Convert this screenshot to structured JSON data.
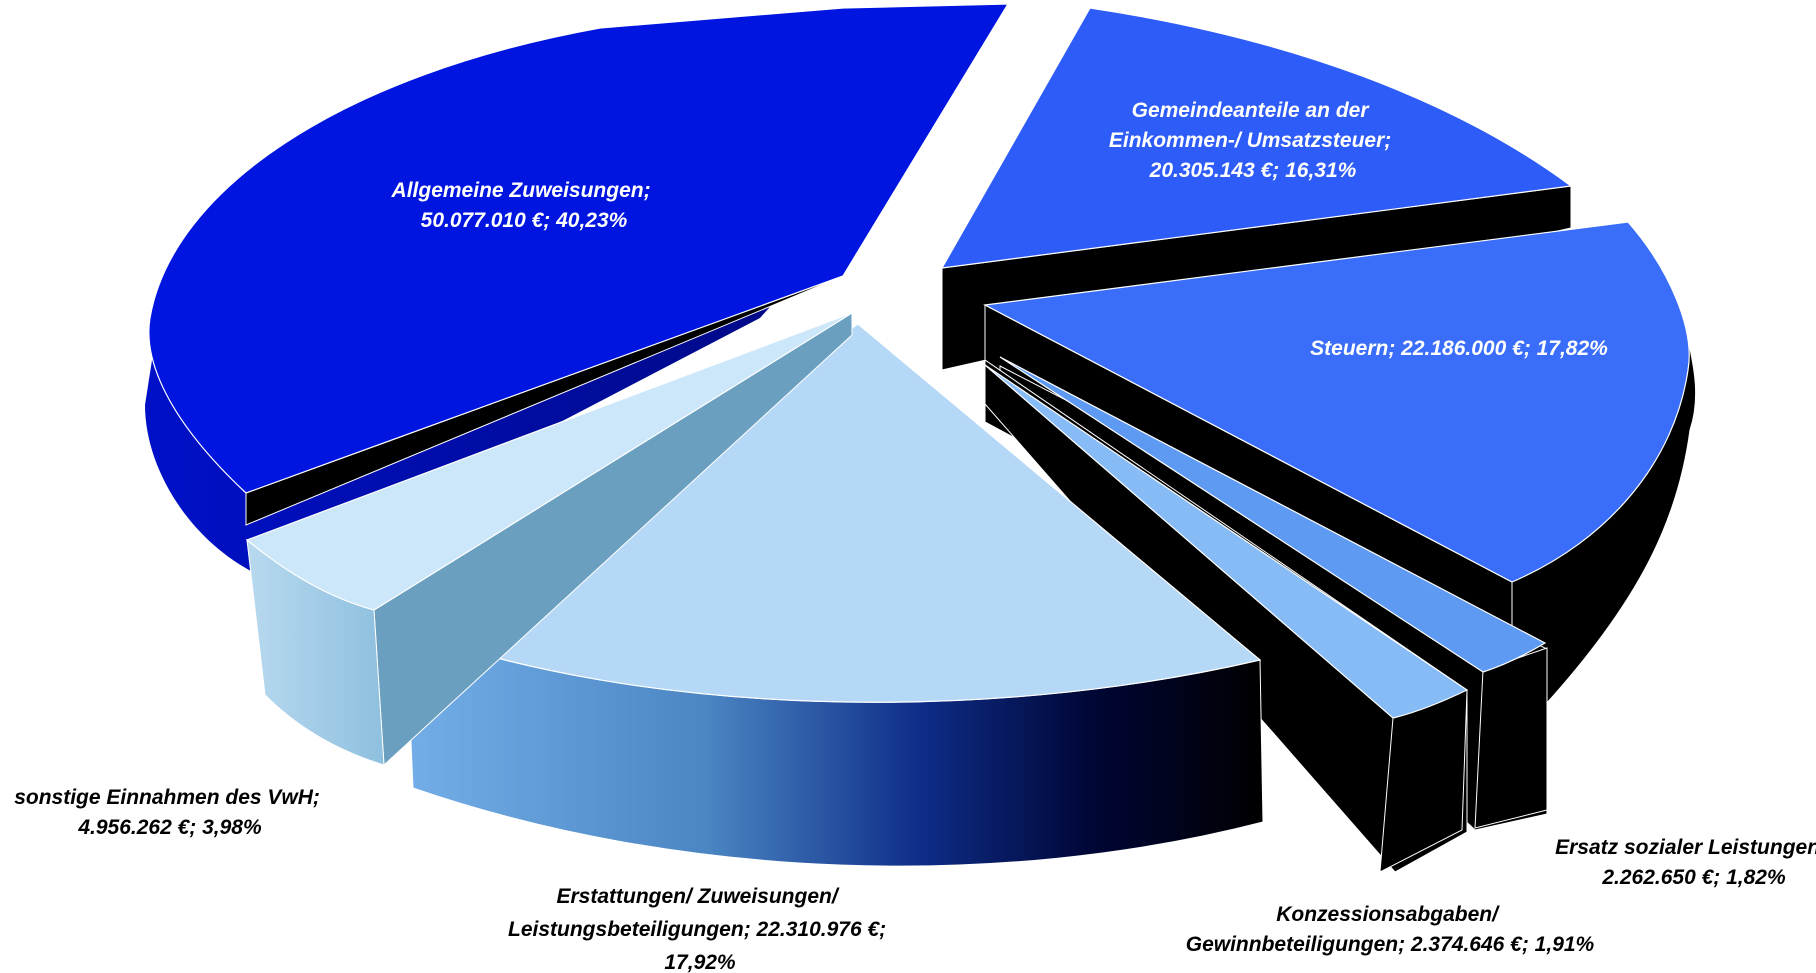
{
  "chart_data": {
    "type": "pie",
    "style": "3d-exploded",
    "series_unit": "€",
    "slices": [
      {
        "key": "allgemeine",
        "category": "Allgemeine Zuweisungen",
        "value": 50077010,
        "value_label": "50.077.010 €",
        "percent": 40.23,
        "percent_label": "40,23%",
        "label_lines": [
          "Allgemeine Zuweisungen;",
          "50.077.010 €; 40,23%"
        ],
        "label_position": "inside",
        "color": "#0015E0"
      },
      {
        "key": "gemeindeanteile",
        "category": "Gemeindeanteile an der Einkommen-/ Umsatzsteuer",
        "value": 20305143,
        "value_label": "20.305.143 €",
        "percent": 16.31,
        "percent_label": "16,31%",
        "label_lines": [
          "Gemeindeanteile an der",
          "Einkommen-/ Umsatzsteuer;",
          "20.305.143 €; 16,31%"
        ],
        "label_position": "inside",
        "color": "#2E5CF8"
      },
      {
        "key": "steuern",
        "category": "Steuern",
        "value": 22186000,
        "value_label": "22.186.000 €",
        "percent": 17.82,
        "percent_label": "17,82%",
        "label_lines": [
          "Steuern; 22.186.000 €; 17,82%"
        ],
        "label_position": "inside",
        "color": "#3A6EFA"
      },
      {
        "key": "ersatz",
        "category": "Ersatz sozialer Leistungen",
        "value": 2262650,
        "value_label": "2.262.650 €",
        "percent": 1.82,
        "percent_label": "1,82%",
        "label_lines": [
          "Ersatz sozialer Leistungen;",
          "2.262.650 €; 1,82%"
        ],
        "label_position": "outside",
        "color": "#5F9AF2"
      },
      {
        "key": "konzession",
        "category": "Konzessionsabgaben/ Gewinnbeteiligungen",
        "value": 2374646,
        "value_label": "2.374.646 €",
        "percent": 1.91,
        "percent_label": "1,91%",
        "label_lines": [
          "Konzessionsabgaben/",
          "Gewinnbeteiligungen; 2.374.646 €; 1,91%"
        ],
        "label_position": "outside",
        "color": "#86BBF6"
      },
      {
        "key": "erstattungen",
        "category": "Erstattungen/ Zuweisungen/ Leistungsbeteiligungen",
        "value": 22310976,
        "value_label": "22.310.976 €",
        "percent": 17.92,
        "percent_label": "17,92%",
        "label_lines": [
          "Erstattungen/ Zuweisungen/",
          "Leistungsbeteiligungen; 22.310.976 €;",
          "17,92%"
        ],
        "label_position": "outside",
        "color": "#B5D8F6"
      },
      {
        "key": "sonstige",
        "category": "sonstige Einnahmen des VwH",
        "value": 4956262,
        "value_label": "4.956.262 €",
        "percent": 3.98,
        "percent_label": "3,98%",
        "label_lines": [
          "sonstige Einnahmen des VwH;",
          "4.956.262 €; 3,98%"
        ],
        "label_position": "outside",
        "color": "#CCE6FA"
      }
    ]
  }
}
